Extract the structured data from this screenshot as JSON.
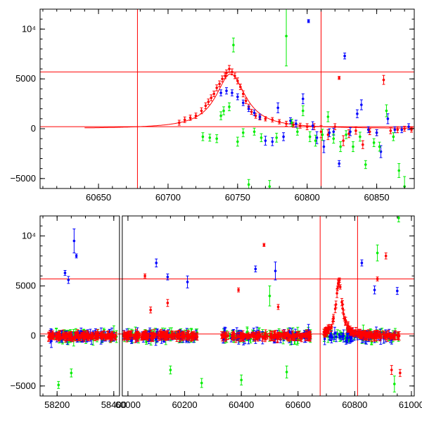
{
  "chart_data": [
    {
      "type": "scatter",
      "title": "",
      "xlabel": "",
      "ylabel": "",
      "xlim": [
        60608,
        60877
      ],
      "ylim": [
        -6000,
        12000
      ],
      "x_ticks": [
        {
          "value": 60650,
          "label": "60650"
        },
        {
          "value": 60700,
          "label": "60700"
        },
        {
          "value": 60750,
          "label": "60750"
        },
        {
          "value": 60800,
          "label": "60800"
        },
        {
          "value": 60850,
          "label": "60850"
        }
      ],
      "y_ticks": [
        {
          "value": -5000,
          "label": "−5000"
        },
        {
          "value": 0,
          "label": "0"
        },
        {
          "value": 5000,
          "label": "5000"
        },
        {
          "value": 10000,
          "label": "10⁴"
        }
      ],
      "hlines": [
        5700,
        200
      ],
      "vlines": [
        60678,
        60810
      ],
      "colors": {
        "red": "#ff0000",
        "blue": "#0000ff",
        "green": "#00ee00",
        "lines": "#ff0000"
      },
      "model_curve": {
        "peak_x": 60745,
        "peak_y": 5500,
        "width": 13,
        "baseline": 0
      },
      "series": [
        {
          "color": "red",
          "points": [
            [
              60708,
              600,
              250
            ],
            [
              60712,
              900,
              280
            ],
            [
              60716,
              1100,
              260
            ],
            [
              60720,
              1300,
              270
            ],
            [
              60724,
              1800,
              300
            ],
            [
              60727,
              2300,
              300
            ],
            [
              60729,
              2700,
              280
            ],
            [
              60731,
              3100,
              300
            ],
            [
              60733,
              3500,
              280
            ],
            [
              60735,
              4100,
              300
            ],
            [
              60737,
              4500,
              300
            ],
            [
              60739,
              5000,
              300
            ],
            [
              60741,
              5300,
              280
            ],
            [
              60742,
              5600,
              300
            ],
            [
              60744,
              6000,
              350
            ],
            [
              60746,
              5700,
              300
            ],
            [
              60748,
              5300,
              280
            ],
            [
              60750,
              4800,
              300
            ],
            [
              60752,
              4200,
              280
            ],
            [
              60754,
              3500,
              300
            ],
            [
              60756,
              2800,
              280
            ],
            [
              60758,
              2200,
              260
            ],
            [
              60760,
              1700,
              250
            ],
            [
              60763,
              1300,
              250
            ],
            [
              60766,
              1100,
              220
            ],
            [
              60770,
              1000,
              220
            ],
            [
              60775,
              900,
              220
            ],
            [
              60780,
              700,
              220
            ],
            [
              60785,
              500,
              250
            ],
            [
              60790,
              400,
              250
            ],
            [
              60795,
              300,
              250
            ],
            [
              60800,
              200,
              300
            ],
            [
              60805,
              200,
              300
            ],
            [
              60810,
              -300,
              600
            ],
            [
              60815,
              -600,
              500
            ],
            [
              60820,
              200,
              300
            ],
            [
              60823,
              5100,
              150
            ],
            [
              60826,
              -1200,
              500
            ],
            [
              60830,
              -500,
              400
            ],
            [
              60835,
              -200,
              350
            ],
            [
              60840,
              -1600,
              400
            ],
            [
              60845,
              -300,
              300
            ],
            [
              60850,
              -400,
              300
            ],
            [
              60855,
              4900,
              450
            ],
            [
              60860,
              -200,
              300
            ],
            [
              60865,
              -100,
              300
            ],
            [
              60870,
              0,
              250
            ],
            [
              60875,
              -100,
              250
            ]
          ]
        },
        {
          "color": "blue",
          "points": [
            [
              60738,
              3600,
              300
            ],
            [
              60742,
              3800,
              320
            ],
            [
              60746,
              3600,
              300
            ],
            [
              60750,
              3200,
              300
            ],
            [
              60754,
              2600,
              280
            ],
            [
              60758,
              2000,
              280
            ],
            [
              60762,
              1600,
              280
            ],
            [
              60766,
              1200,
              260
            ],
            [
              60770,
              -1200,
              450
            ],
            [
              60775,
              -1300,
              400
            ],
            [
              60779,
              2100,
              500
            ],
            [
              60783,
              -800,
              400
            ],
            [
              60788,
              800,
              300
            ],
            [
              60792,
              500,
              350
            ],
            [
              60797,
              3000,
              500
            ],
            [
              60801,
              10800,
              150
            ],
            [
              60804,
              300,
              400
            ],
            [
              60807,
              -900,
              600
            ],
            [
              60812,
              -1800,
              600
            ],
            [
              60816,
              -400,
              400
            ],
            [
              60819,
              -300,
              350
            ],
            [
              60823,
              -3500,
              300
            ],
            [
              60827,
              7300,
              300
            ],
            [
              60831,
              -300,
              400
            ],
            [
              60836,
              1500,
              400
            ],
            [
              60839,
              2400,
              500
            ],
            [
              60844,
              -100,
              300
            ],
            [
              60850,
              -400,
              300
            ],
            [
              60853,
              -2300,
              600
            ],
            [
              60858,
              1000,
              500
            ],
            [
              60863,
              -100,
              300
            ],
            [
              60868,
              -100,
              300
            ],
            [
              60873,
              200,
              300
            ]
          ]
        },
        {
          "color": "green",
          "points": [
            [
              60725,
              -800,
              400
            ],
            [
              60730,
              -900,
              350
            ],
            [
              60735,
              -1000,
              400
            ],
            [
              60738,
              1300,
              400
            ],
            [
              60740,
              1800,
              400
            ],
            [
              60744,
              2200,
              400
            ],
            [
              60747,
              8400,
              700
            ],
            [
              60750,
              -1300,
              450
            ],
            [
              60754,
              -400,
              400
            ],
            [
              60758,
              -5600,
              500
            ],
            [
              60762,
              -300,
              350
            ],
            [
              60767,
              -900,
              400
            ],
            [
              60773,
              -5800,
              600
            ],
            [
              60778,
              -900,
              450
            ],
            [
              60785,
              9300,
              3000
            ],
            [
              60789,
              600,
              350
            ],
            [
              60793,
              -300,
              350
            ],
            [
              60797,
              1800,
              500
            ],
            [
              60802,
              -800,
              500
            ],
            [
              60806,
              -1200,
              550
            ],
            [
              60811,
              -600,
              550
            ],
            [
              60815,
              1200,
              500
            ],
            [
              60819,
              -1000,
              450
            ],
            [
              60824,
              -1800,
              500
            ],
            [
              60828,
              -600,
              400
            ],
            [
              60833,
              -1800,
              500
            ],
            [
              60838,
              -800,
              450
            ],
            [
              60842,
              -3600,
              400
            ],
            [
              60848,
              -1400,
              400
            ],
            [
              60852,
              -1800,
              450
            ],
            [
              60857,
              1800,
              600
            ],
            [
              60862,
              -800,
              400
            ],
            [
              60866,
              -4200,
              700
            ],
            [
              60870,
              -5800,
              1000
            ]
          ]
        }
      ]
    },
    {
      "type": "scatter",
      "title": "",
      "xlabel": "",
      "ylabel": "",
      "xlim": [
        58140,
        61010
      ],
      "ylim": [
        -6000,
        12000
      ],
      "x_ticks": [
        {
          "value": 58200,
          "label": "58200"
        },
        {
          "value": 58400,
          "label": "58400"
        },
        {
          "value": 60000,
          "label": "60000"
        },
        {
          "value": 60200,
          "label": "60200"
        },
        {
          "value": 60400,
          "label": "60400"
        },
        {
          "value": 60600,
          "label": "60600"
        },
        {
          "value": 60800,
          "label": "60800"
        },
        {
          "value": 61000,
          "label": "61000"
        }
      ],
      "y_ticks": [
        {
          "value": -5000,
          "label": "−5000"
        },
        {
          "value": 0,
          "label": "0"
        },
        {
          "value": 5000,
          "label": "5000"
        },
        {
          "value": 10000,
          "label": "10⁴"
        }
      ],
      "axis_break": {
        "after": 58420,
        "resume": 59980
      },
      "hlines": [
        5700,
        200
      ],
      "vlines": [
        60678,
        60810
      ],
      "colors": {
        "red": "#ff0000",
        "blue": "#0000ff",
        "green": "#00ee00",
        "lines": "#ff0000"
      },
      "segments": [
        [
          58170,
          58410
        ],
        [
          59985,
          60245
        ],
        [
          60330,
          60645
        ],
        [
          60690,
          60960
        ]
      ],
      "series": [
        {
          "color": "blue",
          "points": [
            [
              58228,
              6300,
              250
            ],
            [
              58240,
              5600,
              350
            ],
            [
              58260,
              9500,
              1200
            ],
            [
              58268,
              8000,
              200
            ],
            [
              60100,
              7300,
              400
            ],
            [
              60140,
              5900,
              300
            ],
            [
              60210,
              5400,
              600
            ],
            [
              60450,
              6700,
              300
            ],
            [
              60520,
              6500,
              900
            ],
            [
              60825,
              7300,
              300
            ],
            [
              60870,
              4600,
              400
            ],
            [
              60950,
              4500,
              350
            ]
          ]
        },
        {
          "color": "red",
          "points": [
            [
              60060,
              6000,
              200
            ],
            [
              60080,
              2600,
              300
            ],
            [
              60140,
              3300,
              350
            ],
            [
              60390,
              4600,
              200
            ],
            [
              60480,
              9100,
              150
            ],
            [
              60530,
              2900,
              250
            ],
            [
              60880,
              5700,
              200
            ],
            [
              60910,
              8000,
              300
            ],
            [
              60930,
              -3400,
              450
            ],
            [
              60960,
              -3700,
              350
            ]
          ]
        },
        {
          "color": "green",
          "points": [
            [
              58205,
              -4900,
              350
            ],
            [
              58250,
              -3700,
              400
            ],
            [
              60150,
              -3400,
              400
            ],
            [
              60260,
              -4700,
              450
            ],
            [
              60400,
              -4400,
              500
            ],
            [
              60500,
              4000,
              1000
            ],
            [
              60560,
              -3600,
              600
            ],
            [
              60880,
              8300,
              800
            ],
            [
              60940,
              -4800,
              800
            ],
            [
              60955,
              11800,
              400
            ]
          ]
        }
      ]
    }
  ]
}
